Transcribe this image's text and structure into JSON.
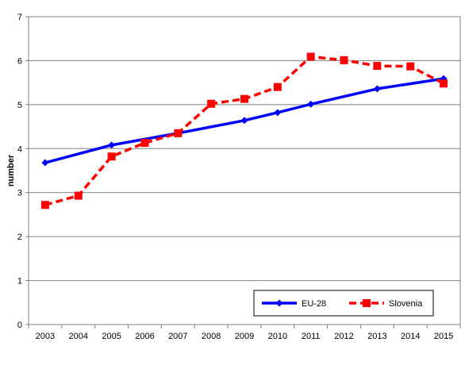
{
  "chart_data": {
    "type": "line",
    "x": [
      "2003",
      "2004",
      "2005",
      "2006",
      "2007",
      "2008",
      "2009",
      "2010",
      "2011",
      "2012",
      "2013",
      "2014",
      "2015"
    ],
    "series": [
      {
        "name": "EU-28",
        "color": "#0000FF",
        "style": "solid",
        "marker": "diamond",
        "values": [
          3.68,
          null,
          4.08,
          null,
          4.35,
          null,
          4.64,
          4.82,
          5.01,
          null,
          5.36,
          null,
          5.59
        ]
      },
      {
        "name": "Slovenia",
        "color": "#FF0000",
        "style": "dashed",
        "marker": "square",
        "values": [
          2.72,
          2.93,
          3.82,
          4.13,
          4.35,
          5.02,
          5.13,
          5.4,
          6.09,
          6.01,
          5.88,
          5.87,
          5.48
        ]
      }
    ],
    "title": "",
    "xlabel": "",
    "ylabel": "number",
    "ylim": [
      0,
      7
    ],
    "yticks": [
      "0",
      "1",
      "2",
      "3",
      "4",
      "5",
      "6",
      "7"
    ],
    "grid": "horizontal",
    "legend": "bottom-right"
  }
}
